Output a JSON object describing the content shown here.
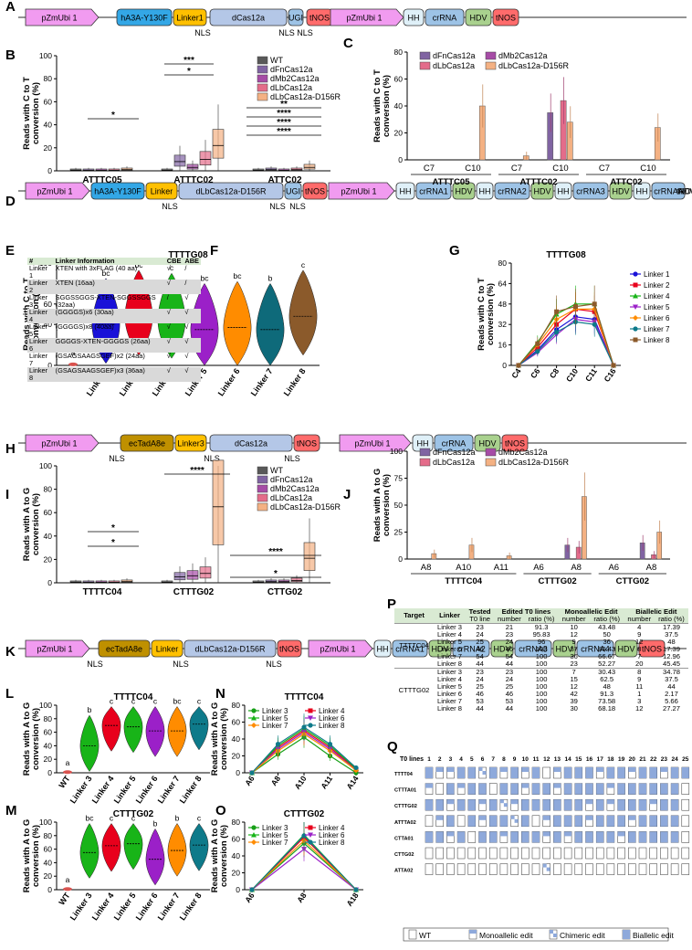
{
  "panel_labels": [
    "A",
    "B",
    "C",
    "D",
    "E",
    "F",
    "G",
    "H",
    "I",
    "J",
    "K",
    "L",
    "M",
    "N",
    "O",
    "P",
    "Q"
  ],
  "construct_a": {
    "blocks": [
      "pZmUbi 1",
      "hA3A-Y130F",
      "Linker1",
      "dCas12a",
      "UGI",
      "tNOS",
      "pZmUbi 1",
      "HH",
      "crRNA",
      "HDV",
      "tNOS"
    ],
    "nls": [
      "NLS",
      "NLS",
      "NLS"
    ]
  },
  "construct_d": {
    "blocks": [
      "pZmUbi 1",
      "hA3A-Y130F",
      "Linker",
      "dLbCas12a-D156R",
      "UGI",
      "tNOS",
      "pZmUbi 1",
      "HH",
      "crRNA1",
      "HDV",
      "HH",
      "crRNA2",
      "HDV",
      "HH",
      "crRNA3",
      "HDV",
      "HH",
      "crRNA4",
      "HDV",
      "tNOS"
    ],
    "nls": [
      "NLS",
      "NLS",
      "NLS"
    ]
  },
  "construct_h": {
    "blocks": [
      "pZmUbi 1",
      "ecTadA8e",
      "Linker3",
      "dCas12a",
      "tNOS",
      "pZmUbi 1",
      "HH",
      "crRNA",
      "HDV",
      "tNOS"
    ],
    "nls": [
      "NLS",
      "NLS",
      "NLS"
    ]
  },
  "construct_k": {
    "blocks": [
      "pZmUbi 1",
      "ecTadA8e",
      "Linker",
      "dLbCas12a-D156R",
      "tNOS",
      "pZmUbi 1",
      "HH",
      "crRNA1",
      "HDV",
      "crRNA2",
      "HDV",
      "crRNA3",
      "HDV",
      "crRNA4",
      "HDV",
      "tNOS"
    ],
    "nls": [
      "NLS",
      "NLS",
      "NLS"
    ]
  },
  "colors": {
    "promoter": "#f19bf0",
    "deaminase": "#33a7e6",
    "linker": "#ffc000",
    "cas": "#b4c7e7",
    "ugi": "#9dc3e6",
    "tnos": "#ff6b6b",
    "hh": "#dff0f8",
    "crrna": "#9dc3e6",
    "hdv": "#a9d18e",
    "ectada": "#bf9000",
    "wt": "#595959",
    "fn": "#8064a2",
    "mb2": "#a64ca6",
    "lb": "#e46c8a",
    "lbd": "#f4b183"
  },
  "chart_data": [
    {
      "panel": "B",
      "type": "box",
      "ylabel": "Reads with C to T conversion (%)",
      "ylim": [
        0,
        100
      ],
      "yticks": [
        0,
        20,
        40,
        60,
        80,
        100
      ],
      "categories": [
        "ATTTC05",
        "ATTTC02",
        "ATTC02"
      ],
      "series": [
        {
          "name": "WT",
          "medians": [
            0.5,
            0.5,
            0.5
          ]
        },
        {
          "name": "dFnCas12a",
          "medians": [
            0.5,
            8,
            1
          ]
        },
        {
          "name": "dMb2Cas12a",
          "medians": [
            0.5,
            3,
            0.5
          ]
        },
        {
          "name": "dLbCas12a",
          "medians": [
            0.5,
            10,
            1
          ]
        },
        {
          "name": "dLbCas12a-D156R",
          "medians": [
            1,
            22,
            3
          ]
        }
      ],
      "significance": [
        "*",
        "***",
        "*",
        "**",
        "****",
        "****",
        "****"
      ]
    },
    {
      "panel": "C",
      "type": "bar",
      "ylabel": "Reads with C to T conversion (%)",
      "ylim": [
        0,
        80
      ],
      "yticks": [
        0,
        20,
        40,
        60,
        80
      ],
      "groups": [
        "ATTTC05",
        "ATTTC02",
        "ATTC02"
      ],
      "positions": [
        "C7",
        "C10",
        "C7",
        "C10",
        "C7",
        "C10"
      ],
      "series": [
        {
          "name": "dFnCas12a",
          "values": [
            0,
            0,
            0,
            35,
            0,
            0
          ]
        },
        {
          "name": "dMb2Cas12a",
          "values": [
            0,
            0,
            0,
            0,
            0,
            0
          ]
        },
        {
          "name": "dLbCas12a",
          "values": [
            0,
            0,
            0,
            44,
            0,
            0
          ]
        },
        {
          "name": "dLbCas12a-D156R",
          "values": [
            0,
            40,
            3,
            28,
            0,
            24
          ]
        }
      ]
    },
    {
      "panel": "F",
      "type": "violin",
      "title": "TTTTG08",
      "ylabel": "Reads with C to T conversion (%)",
      "ylim": [
        0,
        100
      ],
      "yticks": [
        0,
        20,
        40,
        60,
        80,
        100
      ],
      "categories": [
        "WT",
        "Linker 1",
        "Linker 2",
        "Linker 4",
        "Linker 5",
        "Linker 6",
        "Linker 7",
        "Linker 8"
      ],
      "medians": [
        1,
        40,
        48,
        45,
        35,
        37,
        35,
        48
      ],
      "letters": [
        "a",
        "bc",
        "bc",
        "c",
        "bc",
        "bc",
        "b",
        "c"
      ]
    },
    {
      "panel": "G",
      "type": "line",
      "title": "TTTTG08",
      "ylabel": "Reads with C to T conversion (%)",
      "ylim": [
        0,
        80
      ],
      "yticks": [
        0,
        16,
        32,
        48,
        64,
        80
      ],
      "x": [
        "C4",
        "C6",
        "C8",
        "C10",
        "C11",
        "C16"
      ],
      "series": [
        {
          "name": "Linker 1",
          "values": [
            0,
            12,
            28,
            38,
            36,
            0
          ]
        },
        {
          "name": "Linker 2",
          "values": [
            0,
            14,
            32,
            44,
            42,
            0
          ]
        },
        {
          "name": "Linker 4",
          "values": [
            0,
            18,
            40,
            48,
            48,
            0
          ]
        },
        {
          "name": "Linker 5",
          "values": [
            0,
            10,
            24,
            36,
            34,
            0
          ]
        },
        {
          "name": "Linker 6",
          "values": [
            0,
            16,
            36,
            44,
            44,
            0
          ]
        },
        {
          "name": "Linker 7",
          "values": [
            0,
            11,
            26,
            34,
            32,
            0
          ]
        },
        {
          "name": "Linker 8",
          "values": [
            0,
            17,
            42,
            46,
            48,
            0
          ]
        }
      ]
    },
    {
      "panel": "I",
      "type": "box",
      "ylabel": "Reads with A to G conversion (%)",
      "ylim": [
        0,
        100
      ],
      "yticks": [
        0,
        20,
        40,
        60,
        80,
        100
      ],
      "categories": [
        "TTTTC04",
        "CTTTG02",
        "CTTG02"
      ],
      "series": [
        {
          "name": "WT",
          "medians": [
            0.5,
            0.5,
            0.5
          ]
        },
        {
          "name": "dFnCas12a",
          "medians": [
            0.5,
            5,
            1
          ]
        },
        {
          "name": "dMb2Cas12a",
          "medians": [
            0.5,
            6,
            1
          ]
        },
        {
          "name": "dLbCas12a",
          "medians": [
            0.5,
            8,
            2
          ]
        },
        {
          "name": "dLbCas12a-D156R",
          "medians": [
            1,
            65,
            21
          ]
        }
      ],
      "significance": [
        "*",
        "*",
        "****",
        "*",
        "****"
      ]
    },
    {
      "panel": "J",
      "type": "bar",
      "ylabel": "Reads with A to G conversion (%)",
      "ylim": [
        0,
        100
      ],
      "yticks": [
        0,
        25,
        50,
        75,
        100
      ],
      "groups": [
        "TTTTC04",
        "CTTTG02",
        "CTTG02"
      ],
      "positions": [
        "A8",
        "A10",
        "A11",
        "A6",
        "A8",
        "A6",
        "A8"
      ],
      "series": [
        {
          "name": "dFnCas12a",
          "values": [
            0,
            0,
            0,
            0,
            13,
            0,
            15
          ]
        },
        {
          "name": "dMb2Cas12a",
          "values": [
            0,
            0,
            0,
            0,
            0,
            0,
            0
          ]
        },
        {
          "name": "dLbCas12a",
          "values": [
            0,
            0,
            0,
            0,
            11,
            0,
            4
          ]
        },
        {
          "name": "dLbCas12a-D156R",
          "values": [
            5,
            13,
            3,
            0,
            58,
            0,
            25
          ]
        }
      ]
    },
    {
      "panel": "L",
      "type": "violin",
      "title": "TTTTC04",
      "ylabel": "Reads with A to G conversion (%)",
      "ylim": [
        0,
        100
      ],
      "yticks": [
        0,
        20,
        40,
        60,
        80,
        100
      ],
      "categories": [
        "WT",
        "Linker 3",
        "Linker 4",
        "Linker 5",
        "Linker 6",
        "Linker 7",
        "Linker 8"
      ],
      "medians": [
        1,
        40,
        70,
        68,
        62,
        62,
        72
      ],
      "letters": [
        "a",
        "b",
        "c",
        "c",
        "c",
        "bc",
        "c"
      ]
    },
    {
      "panel": "M",
      "type": "violin",
      "title": "CTTTG02",
      "ylabel": "Reads with A to G conversion (%)",
      "ylim": [
        0,
        100
      ],
      "yticks": [
        0,
        20,
        40,
        60,
        80,
        100
      ],
      "categories": [
        "WT",
        "Linker 3",
        "Linker 4",
        "Linker 5",
        "Linker 6",
        "Linker 7",
        "Linker 8"
      ],
      "medians": [
        1,
        55,
        65,
        68,
        45,
        58,
        66
      ],
      "letters": [
        "a",
        "bc",
        "c",
        "c",
        "b",
        "b",
        "c"
      ]
    },
    {
      "panel": "N",
      "type": "line",
      "title": "TTTTC04",
      "ylabel": "Reads with A to G conversion (%)",
      "ylim": [
        0,
        80
      ],
      "yticks": [
        0,
        20,
        40,
        60,
        80
      ],
      "x": [
        "A6",
        "A8",
        "A10",
        "A11",
        "A14"
      ],
      "series": [
        {
          "name": "Linker 3",
          "values": [
            0,
            22,
            42,
            20,
            0
          ]
        },
        {
          "name": "Linker 4",
          "values": [
            0,
            30,
            50,
            30,
            4
          ]
        },
        {
          "name": "Linker 5",
          "values": [
            0,
            32,
            52,
            32,
            5
          ]
        },
        {
          "name": "Linker 6",
          "values": [
            0,
            28,
            48,
            28,
            3
          ]
        },
        {
          "name": "Linker 7",
          "values": [
            0,
            26,
            46,
            26,
            3
          ]
        },
        {
          "name": "Linker 8",
          "values": [
            0,
            34,
            54,
            34,
            6
          ]
        }
      ]
    },
    {
      "panel": "O",
      "type": "line",
      "title": "CTTTG02",
      "ylabel": "Reads with A to G conversion (%)",
      "ylim": [
        0,
        80
      ],
      "yticks": [
        0,
        20,
        40,
        60,
        80
      ],
      "x": [
        "A6",
        "A8",
        "A18"
      ],
      "series": [
        {
          "name": "Linker 3",
          "values": [
            0,
            55,
            0
          ]
        },
        {
          "name": "Linker 4",
          "values": [
            0,
            62,
            0
          ]
        },
        {
          "name": "Linker 5",
          "values": [
            0,
            65,
            0
          ]
        },
        {
          "name": "Linker 6",
          "values": [
            0,
            48,
            0
          ]
        },
        {
          "name": "Linker 7",
          "values": [
            0,
            58,
            0
          ]
        },
        {
          "name": "Linker 8",
          "values": [
            0,
            64,
            0
          ]
        }
      ]
    }
  ],
  "table_e": {
    "headers": [
      "#",
      "Linker Information",
      "CBE",
      "ABE"
    ],
    "rows": [
      [
        "Linker 1",
        "XTEN with 3xFLAG (40 aa)",
        "√",
        "/"
      ],
      [
        "Linker 2",
        "XTEN (16aa)",
        "√",
        "/"
      ],
      [
        "Linker 3",
        "SGGSSGGS-XTEN-SGGSSGGS (32aa)",
        "/",
        "√"
      ],
      [
        "Linker 4",
        "(GGGGS)x6 (30aa)",
        "√",
        "√"
      ],
      [
        "Linker 5",
        "(GGGGS)x8 (40aa)",
        "√",
        "√"
      ],
      [
        "Linker 6",
        "GGGGS-XTEN-GGGGS (26aa)",
        "√",
        "√"
      ],
      [
        "Linker 7",
        "(GSAGSAAGSGEF)x2 (24aa)",
        "√",
        "√"
      ],
      [
        "Linker 8",
        "(GSAGSAAGSGEF)x3 (36aa)",
        "√",
        "√"
      ]
    ]
  },
  "table_p": {
    "headers": [
      "Target",
      "Linker",
      "Tested",
      "Edited T0 lines",
      "Monoallelic Edit",
      "Biallelic Edit"
    ],
    "subheaders": [
      "T0 line",
      "number",
      "ratio (%)",
      "number",
      "ratio (%)",
      "number",
      "ratio (%)"
    ],
    "groups": [
      {
        "target": "TTTTC04",
        "rows": [
          [
            "Linker 3",
            "23",
            "21",
            "91.3",
            "10",
            "43.48",
            "4",
            "17.39"
          ],
          [
            "Linker 4",
            "24",
            "23",
            "95.83",
            "12",
            "50",
            "9",
            "37.5"
          ],
          [
            "Linker 5",
            "25",
            "24",
            "96",
            "9",
            "36",
            "12",
            "48"
          ],
          [
            "Linker 6",
            "46",
            "46",
            "100",
            "37",
            "80.43",
            "8",
            "17.39"
          ],
          [
            "Linker 7",
            "54",
            "54",
            "100",
            "36",
            "66.67",
            "7",
            "12.96"
          ],
          [
            "Linker 8",
            "44",
            "44",
            "100",
            "23",
            "52.27",
            "20",
            "45.45"
          ]
        ]
      },
      {
        "target": "CTTTG02",
        "rows": [
          [
            "Linker 3",
            "23",
            "23",
            "100",
            "7",
            "30.43",
            "8",
            "34.78"
          ],
          [
            "Linker 4",
            "24",
            "24",
            "100",
            "15",
            "62.5",
            "9",
            "37.5"
          ],
          [
            "Linker 5",
            "25",
            "25",
            "100",
            "12",
            "48",
            "11",
            "44"
          ],
          [
            "Linker 6",
            "46",
            "46",
            "100",
            "42",
            "91.3",
            "1",
            "2.17"
          ],
          [
            "Linker 7",
            "53",
            "53",
            "100",
            "39",
            "73.58",
            "3",
            "5.66"
          ],
          [
            "Linker 8",
            "44",
            "44",
            "100",
            "30",
            "68.18",
            "12",
            "27.27"
          ]
        ]
      }
    ]
  },
  "panel_q": {
    "title": "T0 lines",
    "columns": [
      "1",
      "2",
      "3",
      "4",
      "5",
      "6",
      "7",
      "8",
      "9",
      "10",
      "11",
      "12",
      "13",
      "14",
      "15",
      "16",
      "17",
      "18",
      "19",
      "20",
      "21",
      "22",
      "23",
      "24",
      "25"
    ],
    "targets": [
      "TTTT04",
      "CTTTA01",
      "CTTTG02",
      "ATTTA02",
      "CTTA01",
      "CTTG02",
      "ATTA02"
    ],
    "legend": [
      "WT",
      "Monoallelic edit",
      "Chimeric edit",
      "Biallelic edit"
    ]
  }
}
